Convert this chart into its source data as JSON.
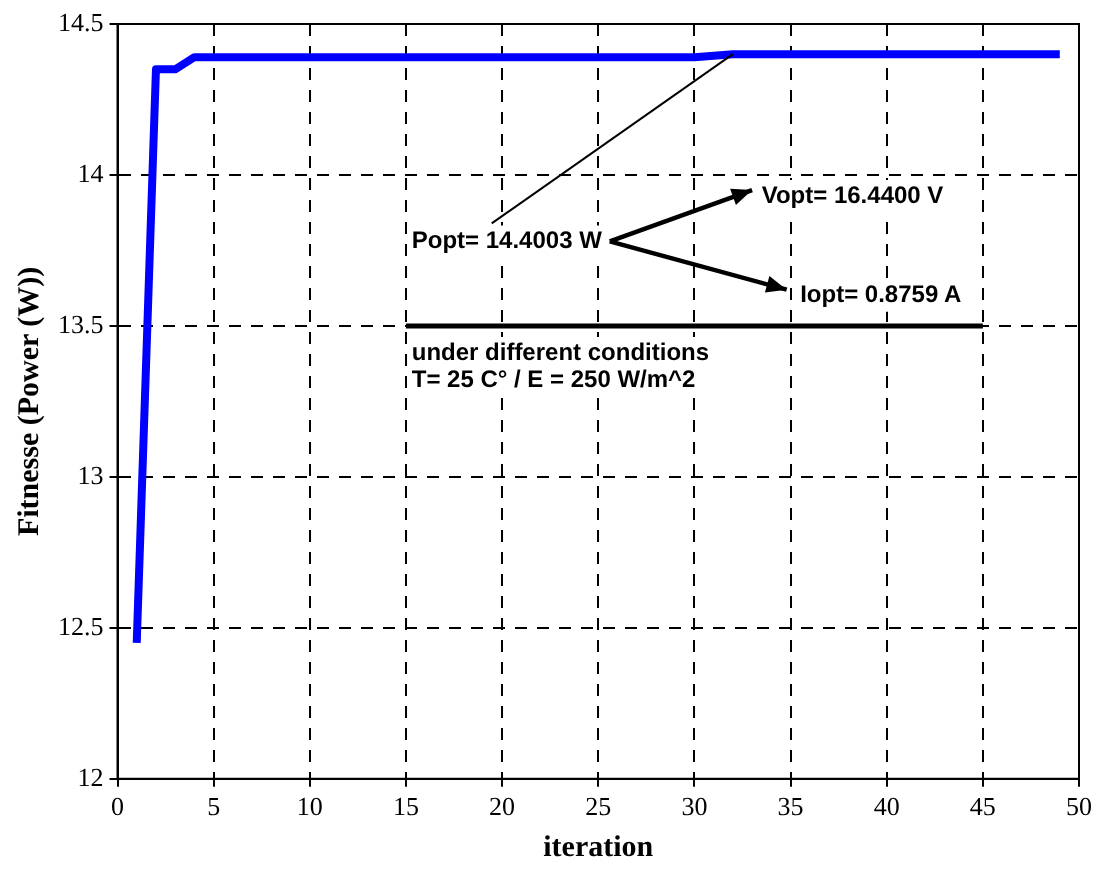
{
  "chart_data": {
    "type": "line",
    "xlabel": "iteration",
    "ylabel": "Fitnesse (Power (W))",
    "series": [
      {
        "x": [
          1,
          2,
          3,
          4,
          30,
          32,
          49
        ],
        "values": [
          12.45,
          14.35,
          14.35,
          14.39,
          14.39,
          14.4,
          14.4
        ],
        "color": "#0000ff"
      },
      {
        "x": [
          15,
          45
        ],
        "values": [
          13.5,
          13.5
        ],
        "color": "#000000"
      }
    ],
    "xlim": [
      0,
      50
    ],
    "xticks": [
      0,
      5,
      10,
      15,
      20,
      25,
      30,
      35,
      40,
      45,
      50
    ],
    "ylim": [
      12,
      14.5
    ],
    "yticks": [
      12,
      12.5,
      13,
      13.5,
      14,
      14.5
    ],
    "grid": true,
    "line_style": "solid",
    "marker": "none",
    "annotations": [
      {
        "text": "Popt= 14.4003 W",
        "x": 32,
        "y": 14.4
      },
      "Vopt= 16.4400 V",
      "Iopt= 0.8759 A",
      "under different conditions",
      "T= 25 C° / E = 250 W/m^2"
    ]
  }
}
